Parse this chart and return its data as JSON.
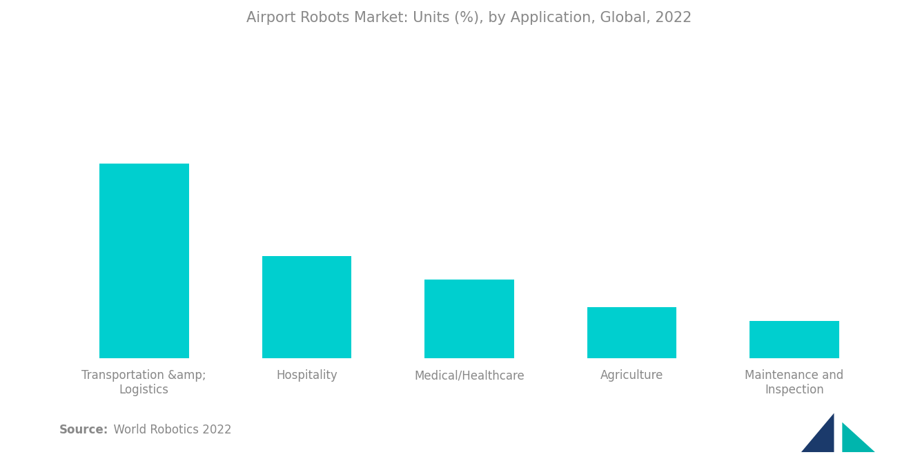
{
  "title": "Airport Robots Market: Units (%), by Application, Global, 2022",
  "categories": [
    "Transportation &amp;;\nLogistics",
    "Hospitality",
    "Medical/Healthcare",
    "Agriculture",
    "Maintenance and\nInspection"
  ],
  "values": [
    42,
    22,
    17,
    11,
    8
  ],
  "bar_color": "#00CFCF",
  "background_color": "#ffffff",
  "title_color": "#888888",
  "label_color": "#888888",
  "source_bold": "Source:",
  "source_normal": "  World Robotics 2022",
  "title_fontsize": 15,
  "label_fontsize": 12,
  "source_fontsize": 12,
  "logo_tri1_color": "#1B3A6B",
  "logo_tri2_color": "#00B5AD"
}
